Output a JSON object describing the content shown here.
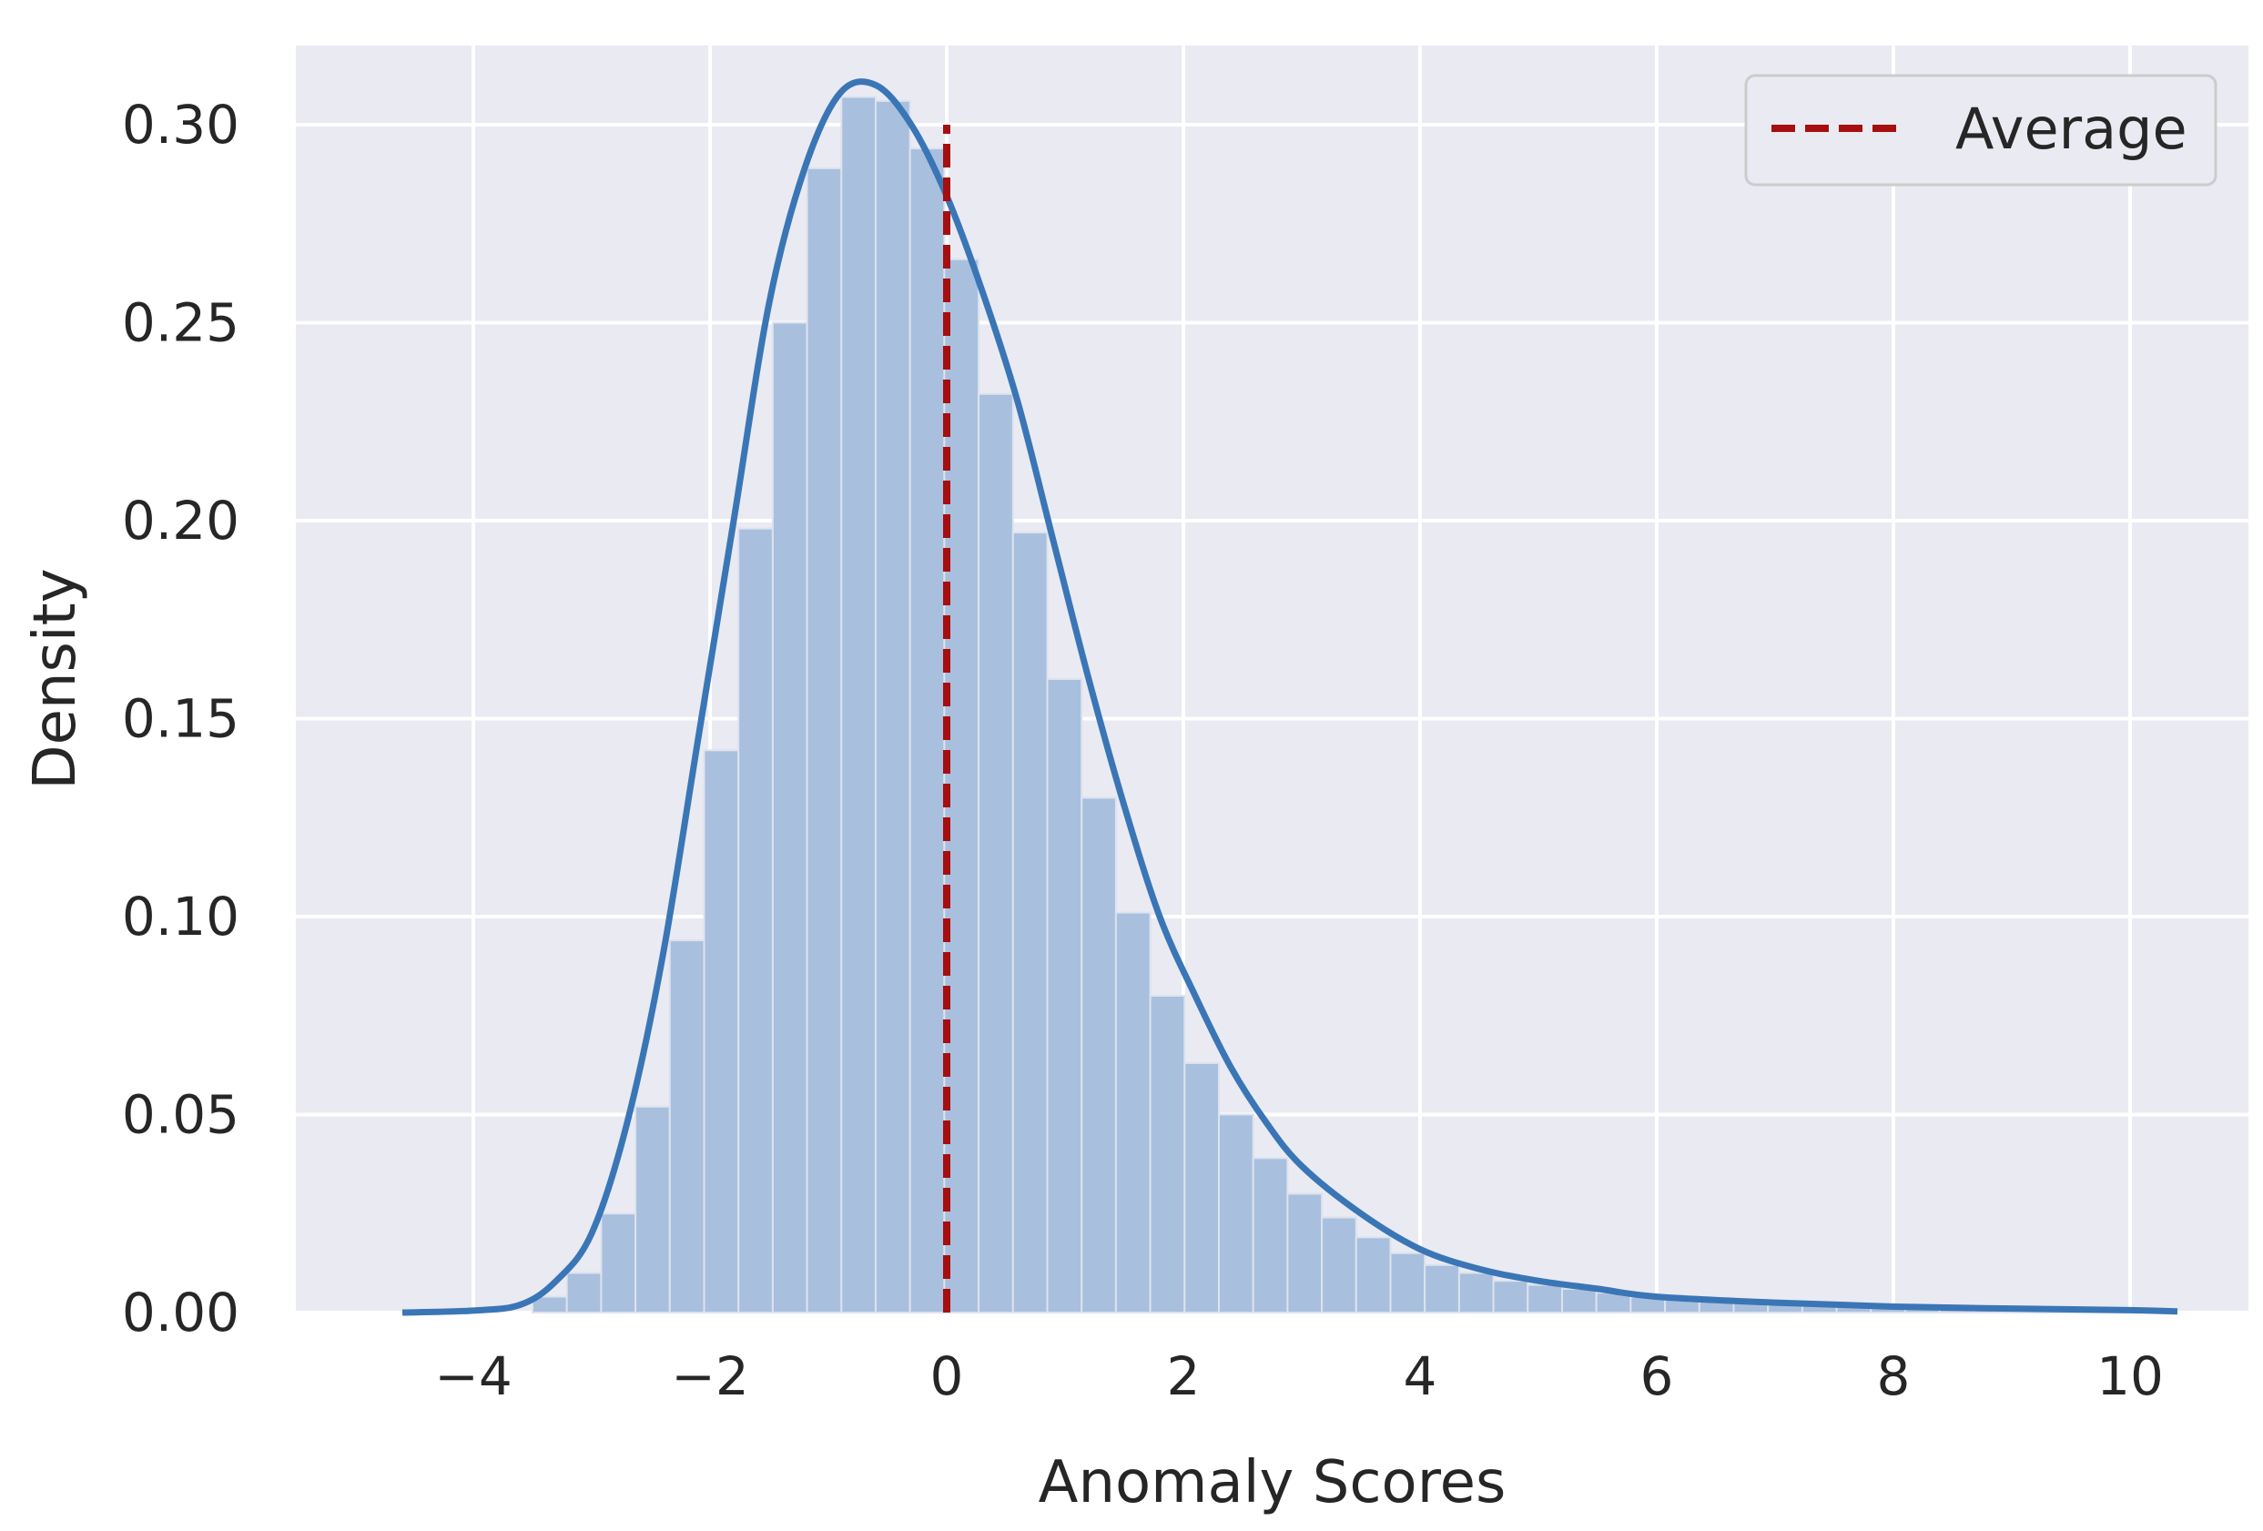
{
  "chart_data": {
    "type": "bar",
    "xlabel": "Anomaly Scores",
    "ylabel": "Density",
    "xlim": [
      -5.5,
      11
    ],
    "ylim": [
      0,
      0.32
    ],
    "grid": true,
    "legend_position": "top-right",
    "xticks": [
      -4,
      -2,
      0,
      2,
      4,
      6,
      8,
      10
    ],
    "xtick_labels": [
      "−4",
      "−2",
      "0",
      "2",
      "4",
      "6",
      "8",
      "10"
    ],
    "yticks": [
      0.0,
      0.05,
      0.1,
      0.15,
      0.2,
      0.25,
      0.3
    ],
    "ytick_labels": [
      "0.00",
      "0.05",
      "0.10",
      "0.15",
      "0.20",
      "0.25",
      "0.30"
    ],
    "histogram": {
      "bin_width": 0.29,
      "bin_starts": [
        -3.5,
        -3.21,
        -2.92,
        -2.63,
        -2.34,
        -2.05,
        -1.76,
        -1.47,
        -1.18,
        -0.89,
        -0.6,
        -0.31,
        -0.02,
        0.27,
        0.56,
        0.85,
        1.14,
        1.43,
        1.72,
        2.01,
        2.3,
        2.59,
        2.88,
        3.17,
        3.46,
        3.75,
        4.04,
        4.33,
        4.62,
        4.91,
        5.2,
        5.49,
        5.78,
        6.07,
        6.36,
        6.65,
        6.94,
        7.23,
        7.52,
        7.81,
        8.1,
        8.39,
        8.68,
        8.97,
        9.26,
        9.55,
        9.84
      ],
      "densities": [
        0.004,
        0.01,
        0.025,
        0.052,
        0.094,
        0.142,
        0.198,
        0.25,
        0.289,
        0.307,
        0.306,
        0.294,
        0.266,
        0.232,
        0.197,
        0.16,
        0.13,
        0.101,
        0.08,
        0.063,
        0.05,
        0.039,
        0.03,
        0.024,
        0.019,
        0.015,
        0.012,
        0.01,
        0.008,
        0.007,
        0.006,
        0.005,
        0.004,
        0.0035,
        0.003,
        0.0025,
        0.002,
        0.0018,
        0.0015,
        0.0013,
        0.0011,
        0.001,
        0.0009,
        0.0008,
        0.0007,
        0.0006,
        0.0005
      ]
    },
    "kde": {
      "name": "",
      "x": [
        -4.6,
        -4.0,
        -3.6,
        -3.3,
        -3.0,
        -2.7,
        -2.4,
        -2.1,
        -1.8,
        -1.5,
        -1.2,
        -0.9,
        -0.6,
        -0.3,
        0.0,
        0.3,
        0.6,
        0.9,
        1.2,
        1.5,
        1.8,
        2.1,
        2.4,
        2.7,
        3.0,
        3.5,
        4.0,
        4.5,
        5.0,
        5.5,
        6.0,
        7.0,
        8.0,
        9.0,
        10.0,
        10.4
      ],
      "y": [
        0.0,
        0.0005,
        0.002,
        0.008,
        0.02,
        0.048,
        0.09,
        0.145,
        0.2,
        0.255,
        0.289,
        0.308,
        0.31,
        0.3,
        0.282,
        0.258,
        0.23,
        0.195,
        0.16,
        0.128,
        0.1,
        0.08,
        0.062,
        0.048,
        0.037,
        0.025,
        0.016,
        0.011,
        0.008,
        0.006,
        0.004,
        0.0025,
        0.0015,
        0.001,
        0.0006,
        0.0003
      ],
      "color": "#3a76b6"
    },
    "average_line": {
      "label": "Average",
      "x": 0,
      "y_top": 0.3,
      "color": "#a50f0f"
    },
    "colors": {
      "background": "#eaeaf2",
      "grid": "#ffffff",
      "bar": "#a9bfde",
      "bar_edge": "#dbe3ee"
    }
  }
}
